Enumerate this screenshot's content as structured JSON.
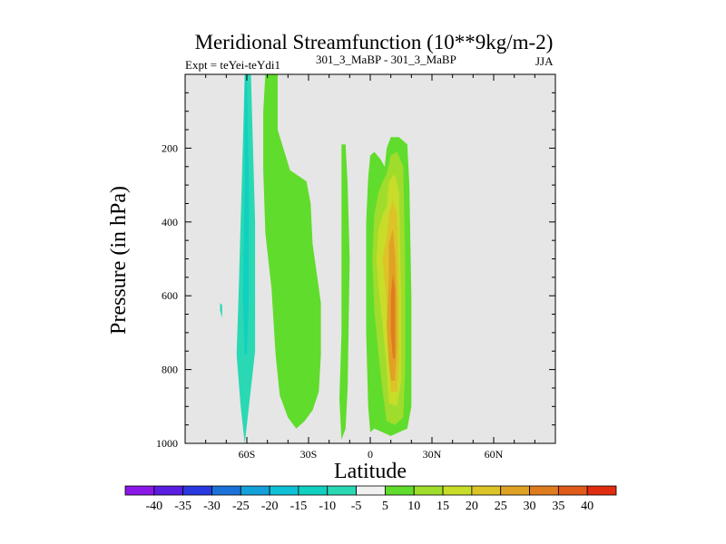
{
  "chart_data": {
    "type": "heatmap",
    "title": "Meridional Streamfunction (10**9kg/m-2)",
    "subtitle_left": "Expt = teYei-teYdi1",
    "subtitle_center": "301_3_MaBP - 301_3_MaBP",
    "subtitle_right": "JJA",
    "xlabel": "Latitude",
    "ylabel": "Pressure (in hPa)",
    "xlim": [
      -90,
      90
    ],
    "ylim": [
      1000,
      0
    ],
    "y_inverted": true,
    "x_ticks": [
      {
        "value": -60,
        "label": "60S"
      },
      {
        "value": -30,
        "label": "30S"
      },
      {
        "value": 0,
        "label": "0"
      },
      {
        "value": 30,
        "label": "30N"
      },
      {
        "value": 60,
        "label": "60N"
      }
    ],
    "y_ticks": [
      {
        "value": 200,
        "label": "200"
      },
      {
        "value": 400,
        "label": "400"
      },
      {
        "value": 600,
        "label": "600"
      },
      {
        "value": 800,
        "label": "800"
      },
      {
        "value": 1000,
        "label": "1000"
      }
    ],
    "background_color": "#e6e6e6",
    "colorbar": {
      "labels": [
        "-40",
        "-35",
        "-30",
        "-25",
        "-20",
        "-15",
        "-10",
        "-5",
        "5",
        "10",
        "15",
        "20",
        "25",
        "30",
        "35",
        "40"
      ],
      "colors": [
        "#8a18e8",
        "#5a1ee0",
        "#2a38e0",
        "#1a72d8",
        "#14a0d8",
        "#10c0d6",
        "#12d0c0",
        "#2ad8b4",
        "#f0f0f0",
        "#60dc2c",
        "#a0dc2c",
        "#c8dc2a",
        "#dcc428",
        "#e0a224",
        "#e07c20",
        "#e05a1a",
        "#e02c10"
      ]
    },
    "regions": [
      {
        "level": "-10 to -5",
        "color": "#2ad8b4",
        "outline": [
          [
            -61,
            1000
          ],
          [
            -59,
            900
          ],
          [
            -56,
            750
          ],
          [
            -56,
            400
          ],
          [
            -57,
            200
          ],
          [
            -58,
            0
          ],
          [
            -61,
            0
          ],
          [
            -62,
            200
          ],
          [
            -63,
            400
          ],
          [
            -64,
            600
          ],
          [
            -65,
            760
          ],
          [
            -63,
            900
          ]
        ]
      },
      {
        "level": "-10 to -5",
        "color": "#2ad8b4",
        "outline": [
          [
            -73,
            640
          ],
          [
            -72,
            660
          ],
          [
            -72,
            625
          ],
          [
            -73,
            620
          ]
        ]
      },
      {
        "level": "-15 to -10",
        "color": "#12d0c0",
        "outline": [
          [
            -60,
            760
          ],
          [
            -59,
            600
          ],
          [
            -59,
            300
          ],
          [
            -60,
            0
          ],
          [
            -61,
            0
          ],
          [
            -61,
            300
          ],
          [
            -62,
            600
          ],
          [
            -61,
            760
          ]
        ]
      },
      {
        "level": "5 to 10",
        "color": "#60dc2c",
        "outline": [
          [
            -51,
            0
          ],
          [
            -45,
            0
          ],
          [
            -45,
            150
          ],
          [
            -39,
            260
          ],
          [
            -31,
            290
          ],
          [
            -29,
            350
          ],
          [
            -28,
            460
          ],
          [
            -24,
            620
          ],
          [
            -24,
            760
          ],
          [
            -25,
            860
          ],
          [
            -28,
            910
          ],
          [
            -32,
            940
          ],
          [
            -36,
            960
          ],
          [
            -40,
            930
          ],
          [
            -44,
            870
          ],
          [
            -46,
            760
          ],
          [
            -48,
            580
          ],
          [
            -51,
            430
          ],
          [
            -52,
            260
          ],
          [
            -52,
            100
          ]
        ]
      },
      {
        "level": "5 to 10",
        "color": "#60dc2c",
        "outline": [
          [
            -14,
            990
          ],
          [
            -12,
            960
          ],
          [
            -11,
            850
          ],
          [
            -10,
            500
          ],
          [
            -11,
            300
          ],
          [
            -12,
            190
          ],
          [
            -14,
            190
          ],
          [
            -14,
            400
          ],
          [
            -14,
            700
          ],
          [
            -15,
            880
          ]
        ]
      },
      {
        "level": "5 to 10",
        "color": "#60dc2c",
        "outline": [
          [
            0,
            970
          ],
          [
            2,
            960
          ],
          [
            6,
            970
          ],
          [
            10,
            980
          ],
          [
            14,
            970
          ],
          [
            18,
            960
          ],
          [
            20,
            900
          ],
          [
            20,
            600
          ],
          [
            19,
            300
          ],
          [
            18,
            190
          ],
          [
            14,
            170
          ],
          [
            10,
            170
          ],
          [
            8,
            200
          ],
          [
            7,
            250
          ],
          [
            5,
            230
          ],
          [
            2,
            210
          ],
          [
            0,
            220
          ],
          [
            -1,
            280
          ],
          [
            -2,
            400
          ],
          [
            -2,
            700
          ],
          [
            -1,
            900
          ]
        ]
      },
      {
        "level": "10 to 15",
        "color": "#a0dc2c",
        "outline": [
          [
            8,
            940
          ],
          [
            12,
            950
          ],
          [
            16,
            930
          ],
          [
            17,
            800
          ],
          [
            17,
            500
          ],
          [
            16,
            250
          ],
          [
            13,
            210
          ],
          [
            10,
            220
          ],
          [
            8,
            270
          ],
          [
            6,
            290
          ],
          [
            4,
            320
          ],
          [
            2,
            380
          ],
          [
            1,
            500
          ],
          [
            2,
            640
          ],
          [
            4,
            760
          ],
          [
            6,
            860
          ]
        ]
      },
      {
        "level": "15 to 20",
        "color": "#c8dc2a",
        "outline": [
          [
            9,
            890
          ],
          [
            13,
            900
          ],
          [
            15,
            830
          ],
          [
            15,
            600
          ],
          [
            14,
            320
          ],
          [
            12,
            270
          ],
          [
            9,
            290
          ],
          [
            8,
            360
          ],
          [
            6,
            380
          ],
          [
            4,
            420
          ],
          [
            3,
            500
          ],
          [
            4,
            580
          ],
          [
            6,
            680
          ],
          [
            8,
            800
          ]
        ]
      },
      {
        "level": "20 to 25",
        "color": "#dcc428",
        "outline": [
          [
            10,
            860
          ],
          [
            13,
            860
          ],
          [
            14,
            780
          ],
          [
            14,
            600
          ],
          [
            13,
            380
          ],
          [
            11,
            340
          ],
          [
            9,
            380
          ],
          [
            8,
            440
          ],
          [
            6,
            500
          ],
          [
            8,
            620
          ],
          [
            9,
            760
          ]
        ]
      },
      {
        "level": "25 to 30",
        "color": "#e0a224",
        "outline": [
          [
            10,
            830
          ],
          [
            12,
            830
          ],
          [
            13,
            740
          ],
          [
            13,
            620
          ],
          [
            12,
            480
          ],
          [
            11,
            420
          ],
          [
            9,
            460
          ],
          [
            9,
            560
          ],
          [
            8,
            680
          ],
          [
            9,
            780
          ]
        ]
      },
      {
        "level": "30 to 35",
        "color": "#e07c20",
        "outline": [
          [
            11,
            770
          ],
          [
            12,
            770
          ],
          [
            12,
            660
          ],
          [
            12,
            580
          ],
          [
            11,
            540
          ],
          [
            10,
            600
          ],
          [
            10,
            700
          ]
        ]
      }
    ]
  }
}
